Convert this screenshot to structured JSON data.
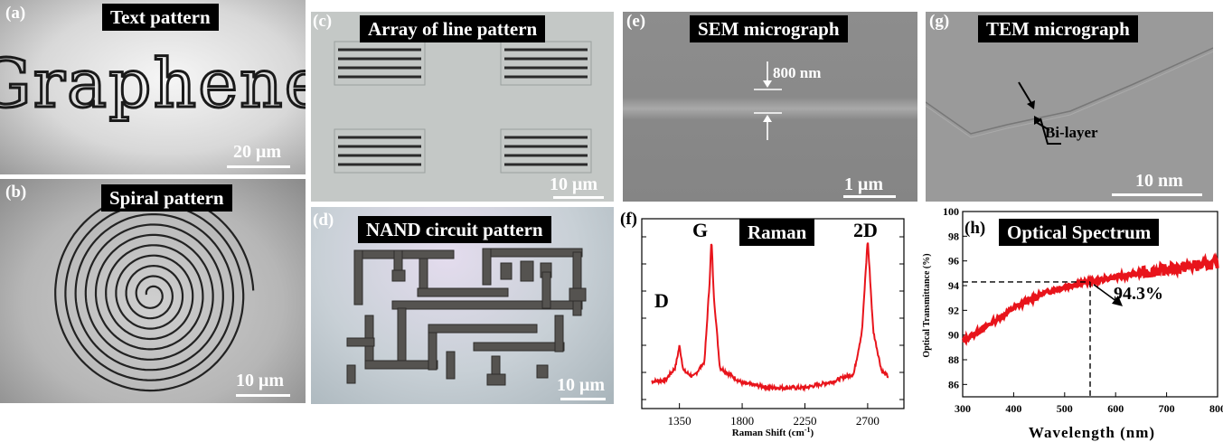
{
  "panels": {
    "a": {
      "label": "(a)",
      "title": "Text pattern",
      "word": "Graphene",
      "scale": "20 μm"
    },
    "b": {
      "label": "(b)",
      "title": "Spiral pattern",
      "scale": "10 μm"
    },
    "c": {
      "label": "(c)",
      "title": "Array of line pattern",
      "scale": "10 μm"
    },
    "d": {
      "label": "(d)",
      "title": "NAND circuit pattern",
      "scale": "10 μm"
    },
    "e": {
      "label": "(e)",
      "title": "SEM micrograph",
      "annotation": "800 nm",
      "scale": "1 μm"
    },
    "g": {
      "label": "(g)",
      "title": "TEM micrograph",
      "annotation": "Bi-layer",
      "scale": "10 nm"
    },
    "f": {
      "label": "(f)",
      "title": "Raman",
      "peak_d": "D",
      "peak_g": "G",
      "peak_2d": "2D"
    },
    "h": {
      "label": "(h)",
      "title": "Optical Spectrum",
      "annotation": "94.3%"
    }
  },
  "colors": {
    "curve": "#e8141b",
    "title_bg": "#000000"
  },
  "chart_data": [
    {
      "type": "line",
      "panel": "f",
      "title": "Raman",
      "xlabel": "Raman Shift (cm⁻¹)",
      "ylabel": "",
      "x_ticks": [
        1350,
        1800,
        2250,
        2700
      ],
      "xlim": [
        1080,
        2960
      ],
      "y_ticks_labeled": false,
      "peaks": [
        {
          "name": "D",
          "x": 1350,
          "height": 0.3
        },
        {
          "name": "G",
          "x": 1580,
          "height": 1.0
        },
        {
          "name": "2D",
          "x": 2700,
          "height": 1.0
        }
      ],
      "series": [
        {
          "x": [
            1150,
            1250,
            1320,
            1350,
            1380,
            1450,
            1530,
            1565,
            1580,
            1595,
            1640,
            1800,
            2000,
            2250,
            2450,
            2600,
            2660,
            2700,
            2740,
            2800,
            2850
          ],
          "y": [
            0.07,
            0.08,
            0.16,
            0.3,
            0.14,
            0.1,
            0.2,
            0.7,
            1.0,
            0.65,
            0.16,
            0.06,
            0.03,
            0.03,
            0.07,
            0.12,
            0.4,
            1.0,
            0.4,
            0.14,
            0.1
          ]
        }
      ]
    },
    {
      "type": "line",
      "panel": "h",
      "title": "Optical Spectrum",
      "xlabel": "Wavelength (nm)",
      "ylabel": "Optical Transmittance (%)",
      "x_ticks": [
        300,
        400,
        500,
        600,
        700,
        800
      ],
      "y_ticks": [
        86,
        88,
        90,
        92,
        94,
        96,
        98,
        100
      ],
      "xlim": [
        300,
        800
      ],
      "ylim": [
        85,
        100
      ],
      "marker": {
        "x": 550,
        "y": 94.3,
        "label": "94.3%"
      },
      "series": [
        {
          "x": [
            300,
            320,
            350,
            380,
            400,
            430,
            460,
            500,
            530,
            550,
            600,
            650,
            700,
            750,
            800
          ],
          "y": [
            89.5,
            90.0,
            90.8,
            91.6,
            92.2,
            92.8,
            93.4,
            93.9,
            94.2,
            94.3,
            94.7,
            95.0,
            95.3,
            95.6,
            95.8
          ]
        }
      ]
    }
  ]
}
